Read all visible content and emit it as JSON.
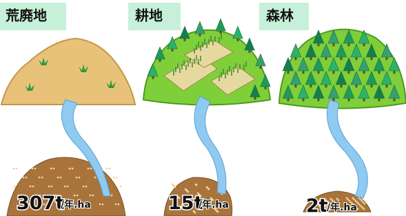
{
  "panels": [
    {
      "label": "荒廃地",
      "amount": "307t",
      "unit": "/年.ha"
    },
    {
      "label": "耕地",
      "amount": "15t",
      "unit": "/年.ha"
    },
    {
      "label": "森林",
      "amount": "2t",
      "unit": "/年.ha"
    }
  ]
}
